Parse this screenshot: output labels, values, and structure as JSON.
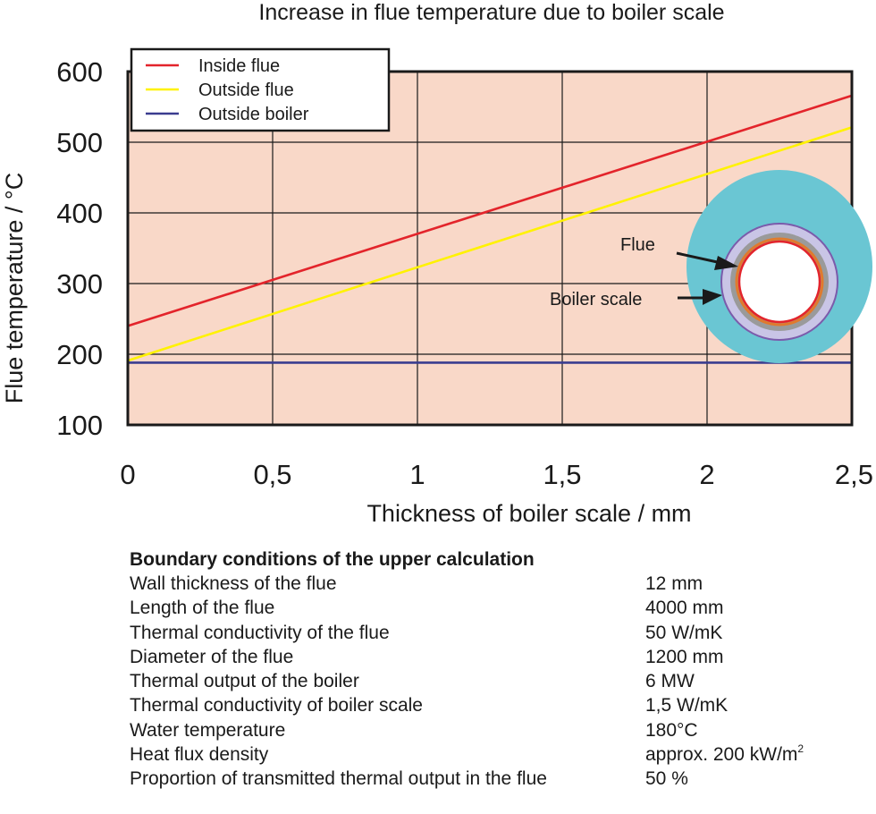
{
  "chart_data": {
    "type": "line",
    "title": "Increase in flue temperature due to boiler scale",
    "xlabel": "Thickness of boiler scale  / mm",
    "ylabel": "Flue temperature / °C",
    "xlim": [
      0,
      2.5
    ],
    "ylim": [
      100,
      600
    ],
    "x_ticks": [
      {
        "value": 0,
        "label": "0"
      },
      {
        "value": 0.5,
        "label": "0,5"
      },
      {
        "value": 1,
        "label": "1"
      },
      {
        "value": 1.5,
        "label": "1,5"
      },
      {
        "value": 2,
        "label": "2"
      },
      {
        "value": 2.5,
        "label": "2,5"
      }
    ],
    "y_ticks": [
      {
        "value": 100,
        "label": "100"
      },
      {
        "value": 200,
        "label": "200"
      },
      {
        "value": 300,
        "label": "300"
      },
      {
        "value": 400,
        "label": "400"
      },
      {
        "value": 500,
        "label": "500"
      },
      {
        "value": 600,
        "label": "600"
      }
    ],
    "grid": true,
    "plot_background": "#f9d8c8",
    "legend_position": "top-left",
    "series": [
      {
        "name": "Inside flue",
        "color": "#e3242b",
        "x": [
          0,
          2.5
        ],
        "y": [
          240,
          566
        ]
      },
      {
        "name": "Outside flue",
        "color": "#fff200",
        "x": [
          0,
          2.5
        ],
        "y": [
          191,
          521
        ]
      },
      {
        "name": "Outside boiler",
        "color": "#3a3c8f",
        "x": [
          0,
          2.5
        ],
        "y": [
          188,
          188
        ]
      }
    ],
    "inset": {
      "labels": {
        "flue": "Flue",
        "scale": "Boiler scale"
      },
      "colors": {
        "water": "#6ac6d3",
        "ring_outer": "#c9c5e6",
        "ring_outer_border": "#7b5bab",
        "scale": "#9a9a9a",
        "flue_wall": "#e07a2d",
        "inside_border": "#e3242b"
      }
    }
  },
  "conditions": {
    "heading": "Boundary conditions of the upper calculation",
    "rows": [
      {
        "label": "Wall thickness of the flue",
        "value": "12 mm"
      },
      {
        "label": "Length of the flue",
        "value": "4000 mm"
      },
      {
        "label": "Thermal conductivity of the flue",
        "value": "50 W/mK"
      },
      {
        "label": "Diameter of the flue",
        "value": "1200 mm"
      },
      {
        "label": "Thermal output of the boiler",
        "value": "6 MW"
      },
      {
        "label": "Thermal conductivity of boiler scale",
        "value": "1,5 W/mK"
      },
      {
        "label": "Water temperature",
        "value": "180°C"
      },
      {
        "label": "Heat flux density",
        "value": "approx. 200 kW/m",
        "sup": "2"
      },
      {
        "label": "Proportion of transmitted thermal output in the flue",
        "value": "50 %"
      }
    ]
  }
}
